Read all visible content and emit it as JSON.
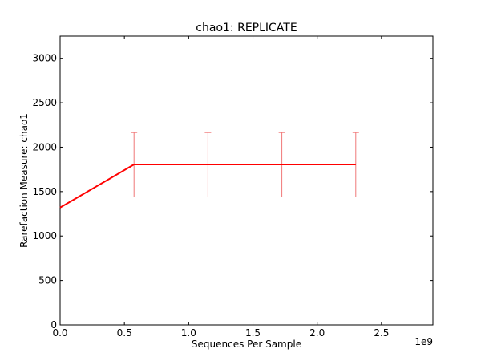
{
  "chart_data": {
    "type": "line",
    "title": "chao1: REPLICATE",
    "xlabel": "Sequences Per Sample",
    "ylabel": "Rarefaction Measure: chao1",
    "x_offset_label": "1e9",
    "xlim": [
      0,
      2.9
    ],
    "ylim": [
      0,
      3250
    ],
    "x_ticks": [
      0.0,
      0.5,
      1.0,
      1.5,
      2.0,
      2.5
    ],
    "x_tick_labels": [
      "0.0",
      "0.5",
      "1.0",
      "1.5",
      "2.0",
      "2.5"
    ],
    "y_ticks": [
      0,
      500,
      1000,
      1500,
      2000,
      2500,
      3000
    ],
    "y_tick_labels": [
      "0",
      "500",
      "1000",
      "1500",
      "2000",
      "2500",
      "3000"
    ],
    "grid": false,
    "series": [
      {
        "color": "#ff0000",
        "error_color": "#f07878",
        "x": [
          0.0,
          0.575,
          1.15,
          1.725,
          2.3
        ],
        "y": [
          1320,
          1805,
          1805,
          1805,
          1805
        ],
        "err_low": [
          null,
          1440,
          1440,
          1440,
          1440
        ],
        "err_high": [
          null,
          2165,
          2165,
          2165,
          2165
        ]
      }
    ]
  }
}
